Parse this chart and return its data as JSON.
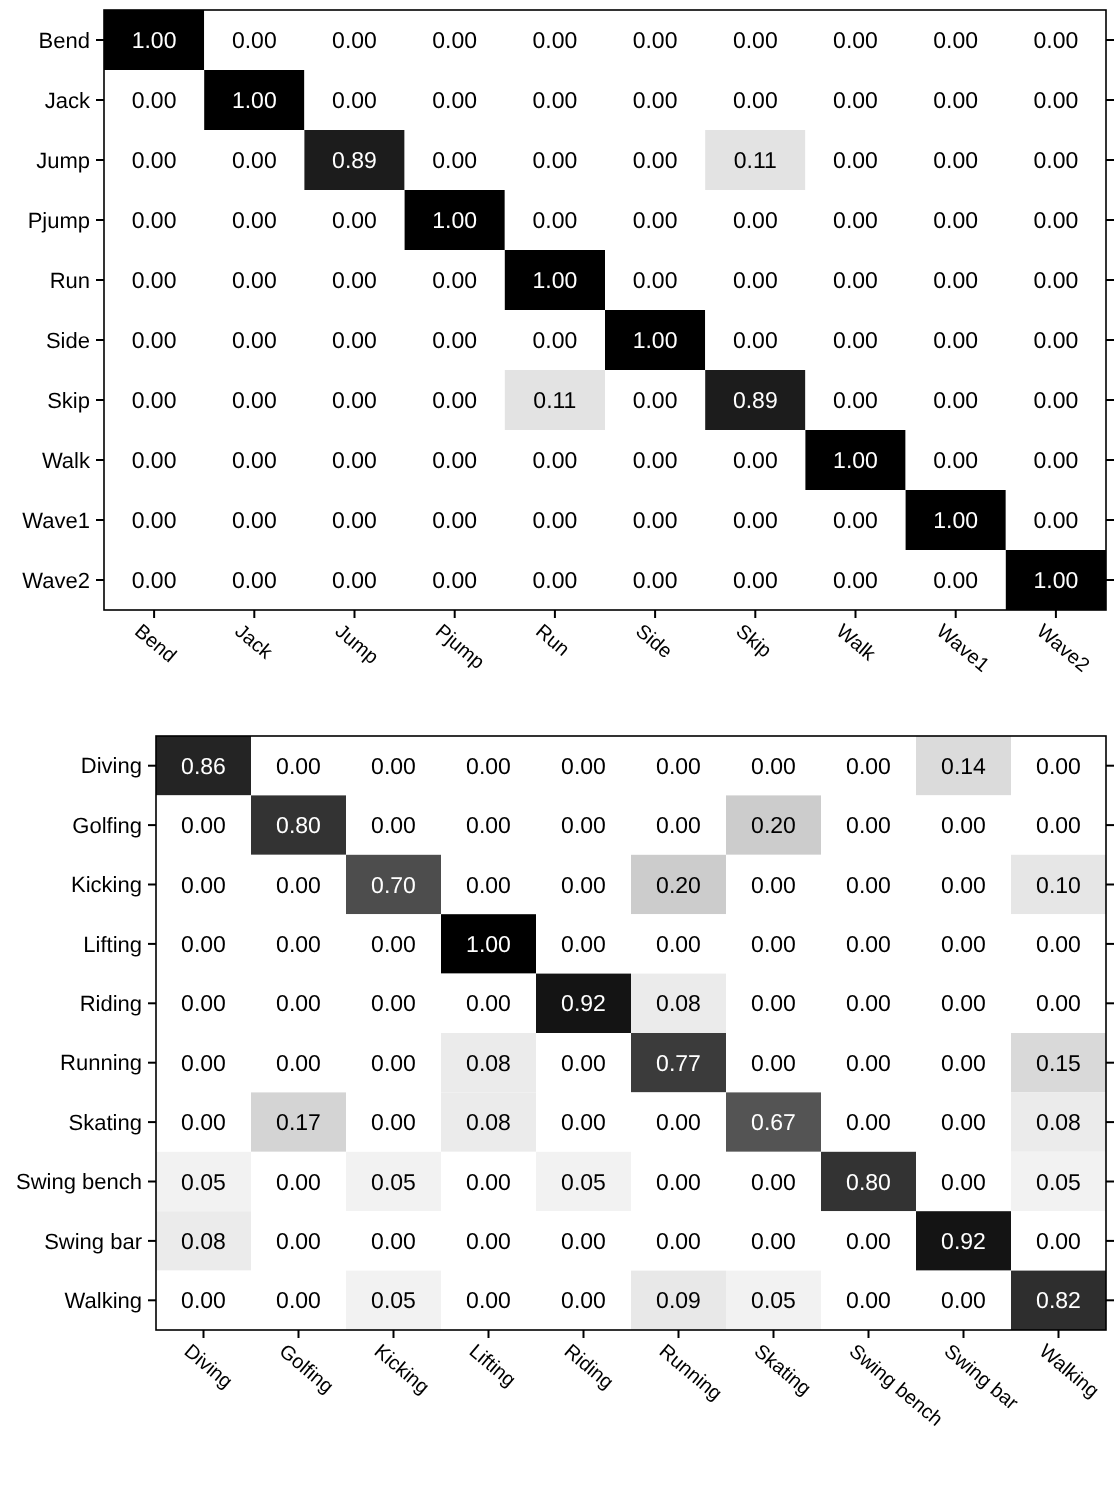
{
  "chart_data": [
    {
      "type": "heatmap",
      "categories": [
        "Bend",
        "Jack",
        "Jump",
        "Pjump",
        "Run",
        "Side",
        "Skip",
        "Walk",
        "Wave1",
        "Wave2"
      ],
      "y_categories": [
        "Bend",
        "Jack",
        "Jump",
        "Pjump",
        "Run",
        "Side",
        "Skip",
        "Walk",
        "Wave1",
        "Wave2"
      ],
      "data_labels": true,
      "cells": [
        [
          1,
          0,
          0,
          0,
          0,
          0,
          0,
          0,
          0,
          0
        ],
        [
          0,
          1,
          0,
          0,
          0,
          0,
          0,
          0,
          0,
          0
        ],
        [
          0,
          0,
          0.89,
          0,
          0,
          0,
          0.11,
          0,
          0,
          0
        ],
        [
          0,
          0,
          0,
          1,
          0,
          0,
          0,
          0,
          0,
          0
        ],
        [
          0,
          0,
          0,
          0,
          1,
          0,
          0,
          0,
          0,
          0
        ],
        [
          0,
          0,
          0,
          0,
          0,
          1,
          0,
          0,
          0,
          0
        ],
        [
          0,
          0,
          0,
          0,
          0.11,
          0,
          0.89,
          0,
          0,
          0
        ],
        [
          0,
          0,
          0,
          0,
          0,
          0,
          0,
          1,
          0,
          0
        ],
        [
          0,
          0,
          0,
          0,
          0,
          0,
          0,
          0,
          1,
          0
        ],
        [
          0,
          0,
          0,
          0,
          0,
          0,
          0,
          0,
          0,
          1
        ]
      ],
      "cell_labels": [
        [
          "1.00",
          "0.00",
          "0.00",
          "0.00",
          "0.00",
          "0.00",
          "0.00",
          "0.00",
          "0.00",
          "0.00"
        ],
        [
          "0.00",
          "1.00",
          "0.00",
          "0.00",
          "0.00",
          "0.00",
          "0.00",
          "0.00",
          "0.00",
          "0.00"
        ],
        [
          "0.00",
          "0.00",
          "0.89",
          "0.00",
          "0.00",
          "0.00",
          "0.11",
          "0.00",
          "0.00",
          "0.00"
        ],
        [
          "0.00",
          "0.00",
          "0.00",
          "1.00",
          "0.00",
          "0.00",
          "0.00",
          "0.00",
          "0.00",
          "0.00"
        ],
        [
          "0.00",
          "0.00",
          "0.00",
          "0.00",
          "1.00",
          "0.00",
          "0.00",
          "0.00",
          "0.00",
          "0.00"
        ],
        [
          "0.00",
          "0.00",
          "0.00",
          "0.00",
          "0.00",
          "1.00",
          "0.00",
          "0.00",
          "0.00",
          "0.00"
        ],
        [
          "0.00",
          "0.00",
          "0.00",
          "0.00",
          "0.11",
          "0.00",
          "0.89",
          "0.00",
          "0.00",
          "0.00"
        ],
        [
          "0.00",
          "0.00",
          "0.00",
          "0.00",
          "0.00",
          "0.00",
          "0.00",
          "1.00",
          "0.00",
          "0.00"
        ],
        [
          "0.00",
          "0.00",
          "0.00",
          "0.00",
          "0.00",
          "0.00",
          "0.00",
          "0.00",
          "1.00",
          "0.00"
        ],
        [
          "0.00",
          "0.00",
          "0.00",
          "0.00",
          "0.00",
          "0.00",
          "0.00",
          "0.00",
          "0.00",
          "1.00"
        ]
      ]
    },
    {
      "type": "heatmap",
      "categories": [
        "Diving",
        "Golfing",
        "Kicking",
        "Lifting",
        "Riding",
        "Running",
        "Skating",
        "Swing bench",
        "Swing bar",
        "Walking"
      ],
      "y_categories": [
        "Diving",
        "Golfing",
        "Kicking",
        "Lifting",
        "Riding",
        "Running",
        "Skating",
        "Swing bench",
        "Swing bar",
        "Walking"
      ],
      "data_labels": true,
      "cells": [
        [
          0.86,
          0,
          0,
          0,
          0,
          0,
          0,
          0,
          0.14,
          0
        ],
        [
          0,
          0.8,
          0,
          0,
          0,
          0,
          0.2,
          0,
          0,
          0
        ],
        [
          0,
          0,
          0.7,
          0,
          0,
          0.2,
          0,
          0,
          0,
          0.1
        ],
        [
          0,
          0,
          0,
          1,
          0,
          0,
          0,
          0,
          0,
          0
        ],
        [
          0,
          0,
          0,
          0,
          0.92,
          0.08,
          0,
          0,
          0,
          0
        ],
        [
          0,
          0,
          0,
          0.08,
          0,
          0.77,
          0,
          0,
          0,
          0.15
        ],
        [
          0,
          0.17,
          0,
          0.08,
          0,
          0,
          0.67,
          0,
          0,
          0.08
        ],
        [
          0.05,
          0,
          0.05,
          0,
          0.05,
          0,
          0,
          0.8,
          0,
          0.05
        ],
        [
          0.08,
          0,
          0,
          0,
          0,
          0,
          0,
          0,
          0.92,
          0
        ],
        [
          0,
          0,
          0.05,
          0,
          0,
          0.09,
          0.05,
          0,
          0,
          0.82
        ]
      ],
      "cell_labels": [
        [
          "0.86",
          "0.00",
          "0.00",
          "0.00",
          "0.00",
          "0.00",
          "0.00",
          "0.00",
          "0.14",
          "0.00"
        ],
        [
          "0.00",
          "0.80",
          "0.00",
          "0.00",
          "0.00",
          "0.00",
          "0.20",
          "0.00",
          "0.00",
          "0.00"
        ],
        [
          "0.00",
          "0.00",
          "0.70",
          "0.00",
          "0.00",
          "0.20",
          "0.00",
          "0.00",
          "0.00",
          "0.10"
        ],
        [
          "0.00",
          "0.00",
          "0.00",
          "1.00",
          "0.00",
          "0.00",
          "0.00",
          "0.00",
          "0.00",
          "0.00"
        ],
        [
          "0.00",
          "0.00",
          "0.00",
          "0.00",
          "0.92",
          "0.08",
          "0.00",
          "0.00",
          "0.00",
          "0.00"
        ],
        [
          "0.00",
          "0.00",
          "0.00",
          "0.08",
          "0.00",
          "0.77",
          "0.00",
          "0.00",
          "0.00",
          "0.15"
        ],
        [
          "0.00",
          "0.17",
          "0.00",
          "0.08",
          "0.00",
          "0.00",
          "0.67",
          "0.00",
          "0.00",
          "0.08"
        ],
        [
          "0.05",
          "0.00",
          "0.05",
          "0.00",
          "0.05",
          "0.00",
          "0.00",
          "0.80",
          "0.00",
          "0.05"
        ],
        [
          "0.08",
          "0.00",
          "0.00",
          "0.00",
          "0.00",
          "0.00",
          "0.00",
          "0.00",
          "0.92",
          "0.00"
        ],
        [
          "0.00",
          "0.00",
          "0.05",
          "0.00",
          "0.00",
          "0.09",
          "0.05",
          "0.00",
          "0.00",
          "0.82"
        ]
      ]
    }
  ]
}
